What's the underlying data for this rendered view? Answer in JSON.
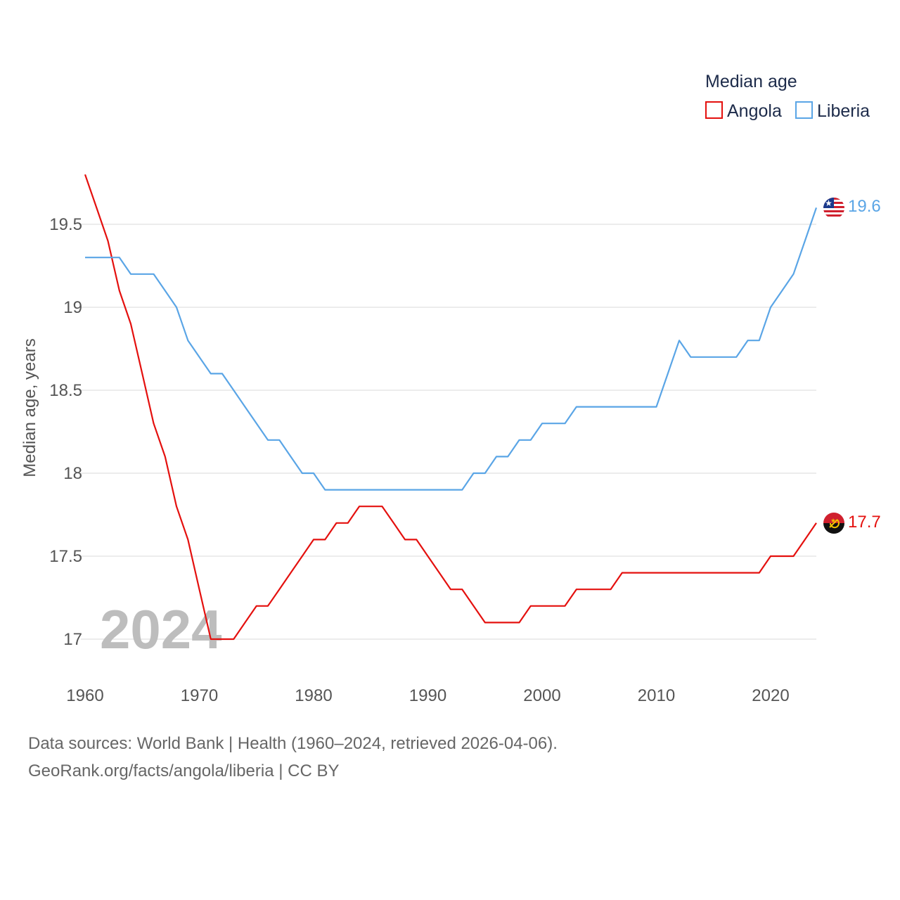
{
  "colors": {
    "angola": "#e4100e",
    "liberia": "#5aa5e6",
    "grid": "#e6e6e6",
    "text": "#555555"
  },
  "chart_data": {
    "type": "line",
    "ylabel": "Median age, years",
    "xlabel": "",
    "ylim": [
      16.75,
      19.85
    ],
    "xlim": [
      1960,
      2024
    ],
    "yticks": [
      17,
      17.5,
      18,
      18.5,
      19,
      19.5
    ],
    "ytick_labels": [
      "17",
      "17.5",
      "18",
      "18.5",
      "19",
      "19.5"
    ],
    "xticks": [
      1960,
      1970,
      1980,
      1990,
      2000,
      2010,
      2020
    ],
    "xtick_labels": [
      "1960",
      "1970",
      "1980",
      "1990",
      "2000",
      "2010",
      "2020"
    ],
    "legend_title": "Median age",
    "legend_position": "top-right",
    "year_label": "2024",
    "x": [
      1960,
      1961,
      1962,
      1963,
      1964,
      1965,
      1966,
      1967,
      1968,
      1969,
      1970,
      1971,
      1972,
      1973,
      1974,
      1975,
      1976,
      1977,
      1978,
      1979,
      1980,
      1981,
      1982,
      1983,
      1984,
      1985,
      1986,
      1987,
      1988,
      1989,
      1990,
      1991,
      1992,
      1993,
      1994,
      1995,
      1996,
      1997,
      1998,
      1999,
      2000,
      2001,
      2002,
      2003,
      2004,
      2005,
      2006,
      2007,
      2008,
      2009,
      2010,
      2011,
      2012,
      2013,
      2014,
      2015,
      2016,
      2017,
      2018,
      2019,
      2020,
      2021,
      2022,
      2023,
      2024
    ],
    "series": [
      {
        "name": "Angola",
        "key": "angola",
        "end_label": "17.7",
        "values": [
          19.8,
          19.6,
          19.4,
          19.1,
          18.9,
          18.6,
          18.3,
          18.1,
          17.8,
          17.6,
          17.3,
          17.0,
          17.0,
          17.0,
          17.1,
          17.2,
          17.2,
          17.3,
          17.4,
          17.5,
          17.6,
          17.6,
          17.7,
          17.7,
          17.8,
          17.8,
          17.8,
          17.7,
          17.6,
          17.6,
          17.5,
          17.4,
          17.3,
          17.3,
          17.2,
          17.1,
          17.1,
          17.1,
          17.1,
          17.2,
          17.2,
          17.2,
          17.2,
          17.3,
          17.3,
          17.3,
          17.3,
          17.4,
          17.4,
          17.4,
          17.4,
          17.4,
          17.4,
          17.4,
          17.4,
          17.4,
          17.4,
          17.4,
          17.4,
          17.4,
          17.5,
          17.5,
          17.5,
          17.6,
          17.7
        ]
      },
      {
        "name": "Liberia",
        "key": "liberia",
        "end_label": "19.6",
        "values": [
          19.3,
          19.3,
          19.3,
          19.3,
          19.2,
          19.2,
          19.2,
          19.1,
          19.0,
          18.8,
          18.7,
          18.6,
          18.6,
          18.5,
          18.4,
          18.3,
          18.2,
          18.2,
          18.1,
          18.0,
          18.0,
          17.9,
          17.9,
          17.9,
          17.9,
          17.9,
          17.9,
          17.9,
          17.9,
          17.9,
          17.9,
          17.9,
          17.9,
          17.9,
          18.0,
          18.0,
          18.1,
          18.1,
          18.2,
          18.2,
          18.3,
          18.3,
          18.3,
          18.4,
          18.4,
          18.4,
          18.4,
          18.4,
          18.4,
          18.4,
          18.4,
          18.6,
          18.8,
          18.7,
          18.7,
          18.7,
          18.7,
          18.7,
          18.8,
          18.8,
          19.0,
          19.1,
          19.2,
          19.4,
          19.6
        ]
      }
    ]
  },
  "footer": {
    "line1": "Data sources: World Bank | Health (1960–2024, retrieved 2026-04-06).",
    "line2": "GeoRank.org/facts/angola/liberia | CC BY"
  }
}
